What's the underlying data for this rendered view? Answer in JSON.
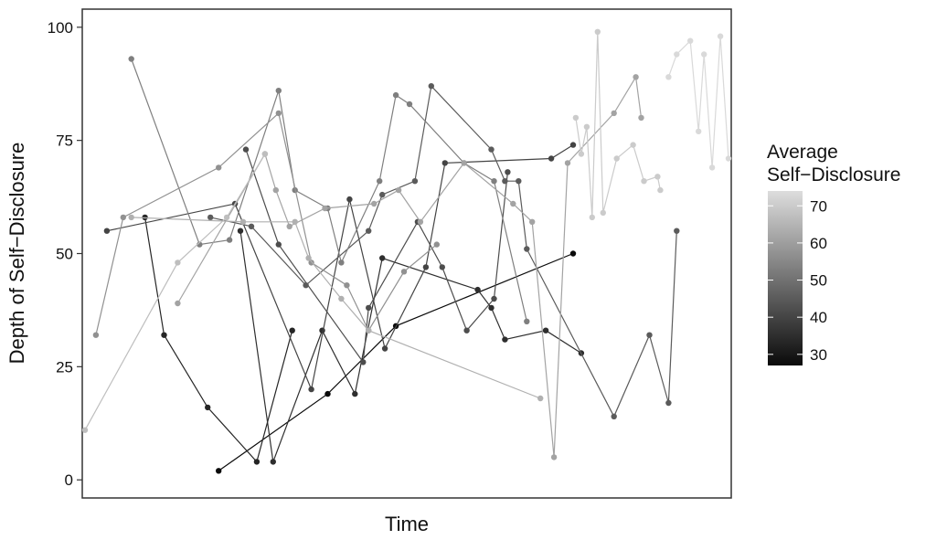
{
  "chart_data": {
    "type": "line",
    "title": "",
    "xlabel": "Time",
    "ylabel": "Depth of Self−Disclosure",
    "ylim": [
      -4,
      104
    ],
    "yticks": [
      0,
      25,
      50,
      75,
      100
    ],
    "ytick_labels": [
      "0",
      "25",
      "50",
      "75",
      "100"
    ],
    "xticks_shown": false,
    "grid": false,
    "legend": {
      "title_lines": [
        "Average",
        "Self−Disclosure"
      ],
      "placement": "right",
      "type": "colorbar",
      "range": [
        27,
        74
      ],
      "ticks": [
        30,
        40,
        50,
        60,
        70
      ],
      "tick_labels": [
        "30",
        "40",
        "50",
        "60",
        "70"
      ],
      "color_low": "#0a0a0a",
      "color_high": "#dddddd"
    },
    "series": [
      {
        "avg": 27,
        "points": [
          [
            5,
            2
          ],
          [
            9,
            19
          ],
          [
            11.5,
            34
          ],
          [
            18,
            50
          ]
        ]
      },
      {
        "avg": 33,
        "points": [
          [
            2.3,
            58
          ],
          [
            3,
            32
          ],
          [
            4.6,
            16
          ],
          [
            6.4,
            4
          ],
          [
            7.7,
            33
          ]
        ]
      },
      {
        "avg": 35,
        "points": [
          [
            5.8,
            55
          ],
          [
            7,
            4
          ],
          [
            8.8,
            33
          ],
          [
            10,
            19
          ],
          [
            11,
            49
          ],
          [
            14.5,
            42
          ],
          [
            15,
            38
          ],
          [
            15.5,
            31
          ],
          [
            17,
            33
          ],
          [
            18.3,
            28
          ]
        ]
      },
      {
        "avg": 40,
        "points": [
          [
            0.9,
            55
          ],
          [
            5.6,
            61
          ],
          [
            8.4,
            20
          ],
          [
            9.8,
            62
          ],
          [
            11.1,
            29
          ],
          [
            12.6,
            47
          ],
          [
            13.3,
            70
          ],
          [
            17.2,
            71
          ],
          [
            18,
            74
          ]
        ]
      },
      {
        "avg": 42,
        "points": [
          [
            6,
            73
          ],
          [
            7.2,
            52
          ],
          [
            10.3,
            26
          ],
          [
            10.5,
            38
          ],
          [
            12.3,
            57
          ],
          [
            13.2,
            47
          ],
          [
            14.1,
            33
          ],
          [
            15.1,
            40
          ],
          [
            15.6,
            68
          ]
        ]
      },
      {
        "avg": 45,
        "points": [
          [
            4.7,
            58
          ],
          [
            6.2,
            56
          ],
          [
            8.2,
            43
          ],
          [
            10.5,
            55
          ],
          [
            11,
            63
          ],
          [
            12.2,
            66
          ],
          [
            12.8,
            87
          ],
          [
            15,
            73
          ],
          [
            15.5,
            66
          ],
          [
            16,
            66
          ],
          [
            16.3,
            51
          ],
          [
            19.5,
            14
          ],
          [
            20.8,
            32
          ],
          [
            21.5,
            17
          ],
          [
            21.8,
            55
          ]
        ]
      },
      {
        "avg": 53,
        "points": [
          [
            1.8,
            93
          ],
          [
            4.3,
            52
          ],
          [
            5.4,
            53
          ],
          [
            7.2,
            86
          ],
          [
            7.8,
            64
          ],
          [
            9,
            60
          ],
          [
            9.5,
            48
          ],
          [
            10.9,
            66
          ],
          [
            11.5,
            85
          ],
          [
            12,
            83
          ],
          [
            14,
            70
          ],
          [
            15.1,
            66
          ],
          [
            16.3,
            35
          ]
        ]
      },
      {
        "avg": 57,
        "points": [
          [
            0.5,
            32
          ],
          [
            1.5,
            58
          ],
          [
            5,
            69
          ],
          [
            7.2,
            81
          ],
          [
            8.4,
            48
          ],
          [
            9.7,
            43
          ],
          [
            10.5,
            33
          ],
          [
            11.8,
            46
          ],
          [
            13,
            52
          ]
        ]
      },
      {
        "avg": 61,
        "points": [
          [
            3.5,
            39
          ],
          [
            6.7,
            72
          ],
          [
            7.1,
            64
          ],
          [
            7.6,
            56
          ],
          [
            8.9,
            60
          ],
          [
            10.7,
            61
          ],
          [
            11.6,
            64
          ],
          [
            12.4,
            57
          ],
          [
            14,
            70
          ],
          [
            15.8,
            61
          ],
          [
            16.5,
            57
          ],
          [
            17.3,
            5
          ],
          [
            17.8,
            70
          ],
          [
            19.5,
            81
          ],
          [
            20.3,
            89
          ],
          [
            20.5,
            80
          ]
        ]
      },
      {
        "avg": 64,
        "points": [
          [
            1.8,
            58
          ],
          [
            5.9,
            57
          ],
          [
            7.8,
            57
          ],
          [
            8.3,
            49
          ],
          [
            9.5,
            40
          ],
          [
            10.5,
            33
          ],
          [
            16.8,
            18
          ]
        ]
      },
      {
        "avg": 67,
        "points": [
          [
            0.1,
            11
          ],
          [
            3.5,
            48
          ],
          [
            5.3,
            58
          ],
          [
            6.7,
            72
          ]
        ]
      },
      {
        "avg": 70,
        "points": [
          [
            18.1,
            80
          ],
          [
            18.3,
            72
          ],
          [
            18.5,
            78
          ],
          [
            18.7,
            58
          ],
          [
            18.9,
            99
          ],
          [
            19.1,
            59
          ],
          [
            19.6,
            71
          ],
          [
            20.2,
            74
          ],
          [
            20.6,
            66
          ],
          [
            21.1,
            67
          ],
          [
            21.2,
            64
          ]
        ]
      },
      {
        "avg": 73,
        "points": [
          [
            21.5,
            89
          ],
          [
            21.8,
            94
          ],
          [
            22.3,
            97
          ],
          [
            22.6,
            77
          ],
          [
            22.8,
            94
          ],
          [
            23.1,
            69
          ],
          [
            23.4,
            98
          ],
          [
            23.7,
            71
          ]
        ]
      }
    ]
  }
}
